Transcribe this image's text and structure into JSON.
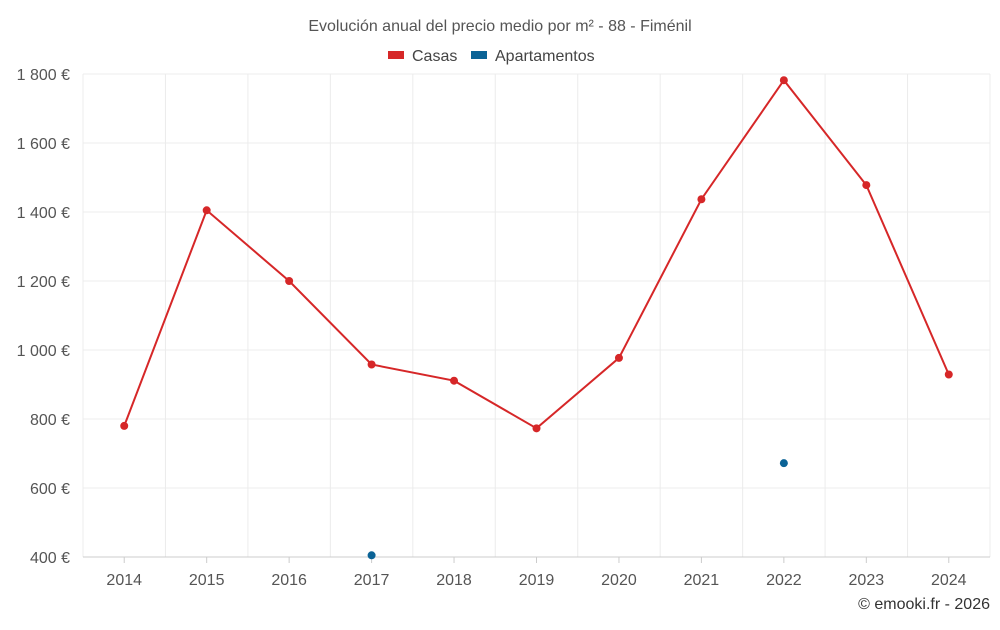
{
  "chart_data": {
    "type": "line",
    "title": "Evolución anual del precio medio por m² - 88 - Fiménil",
    "categories": [
      "2014",
      "2015",
      "2016",
      "2017",
      "2018",
      "2019",
      "2020",
      "2021",
      "2022",
      "2023",
      "2024"
    ],
    "y_ticks": [
      400,
      600,
      800,
      1000,
      1200,
      1400,
      1600,
      1800
    ],
    "y_tick_labels": [
      "400 €",
      "600 €",
      "800 €",
      "1 000 €",
      "1 200 €",
      "1 400 €",
      "1 600 €",
      "1 800 €"
    ],
    "ylim": [
      400,
      1800
    ],
    "grid": true,
    "legend_position": "top-center",
    "series": [
      {
        "name": "Casas",
        "color": "#d62728",
        "values": [
          780,
          1405,
          1200,
          958,
          911,
          773,
          977,
          1437,
          1782,
          1478,
          929
        ]
      },
      {
        "name": "Apartamentos",
        "color": "#0b6396",
        "values": [
          null,
          null,
          null,
          405,
          null,
          null,
          null,
          null,
          672,
          null,
          null
        ]
      }
    ],
    "credit": "© emooki.fr - 2026"
  }
}
